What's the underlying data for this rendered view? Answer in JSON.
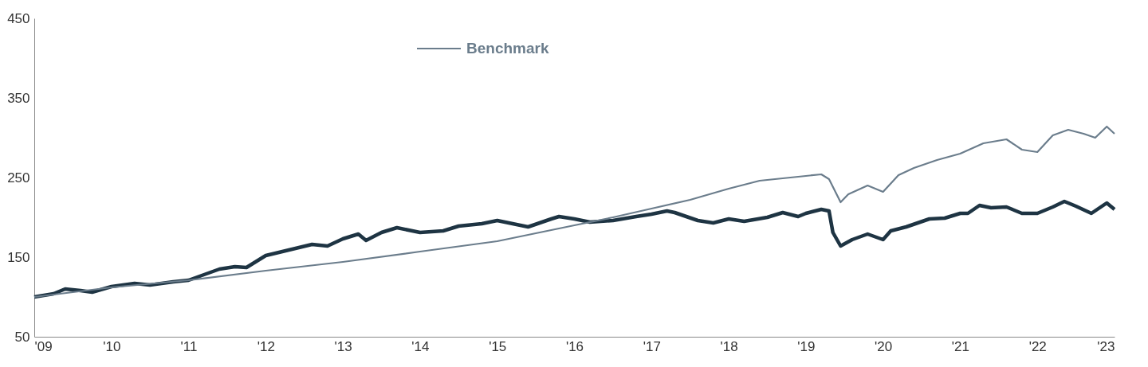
{
  "chart_data": {
    "type": "line",
    "xlim": [
      2009,
      2023
    ],
    "xticks": [
      {
        "value": 2009,
        "label": "'09"
      },
      {
        "value": 2010,
        "label": "'10"
      },
      {
        "value": 2011,
        "label": "'11"
      },
      {
        "value": 2012,
        "label": "'12"
      },
      {
        "value": 2013,
        "label": "'13"
      },
      {
        "value": 2014,
        "label": "'14"
      },
      {
        "value": 2015,
        "label": "'15"
      },
      {
        "value": 2016,
        "label": "'16"
      },
      {
        "value": 2017,
        "label": "'17"
      },
      {
        "value": 2018,
        "label": "'18"
      },
      {
        "value": 2019,
        "label": "'19"
      },
      {
        "value": 2020,
        "label": "'20"
      },
      {
        "value": 2021,
        "label": "'21"
      },
      {
        "value": 2022,
        "label": "'22"
      },
      {
        "value": 2023,
        "label": "'23"
      }
    ],
    "ylim": [
      50,
      450
    ],
    "yticks": [
      50,
      150,
      250,
      350,
      450
    ],
    "grid": false,
    "legend": "top left",
    "series": [
      {
        "color": "#1e3443",
        "x": [
          2009.0,
          2009.25,
          2009.4,
          2009.6,
          2009.75,
          2010.0,
          2010.3,
          2010.5,
          2010.8,
          2011.0,
          2011.2,
          2011.4,
          2011.6,
          2011.75,
          2012.0,
          2012.3,
          2012.6,
          2012.8,
          2013.0,
          2013.2,
          2013.3,
          2013.5,
          2013.7,
          2014.0,
          2014.3,
          2014.5,
          2014.8,
          2015.0,
          2015.4,
          2015.7,
          2015.8,
          2016.0,
          2016.2,
          2016.5,
          2016.8,
          2017.0,
          2017.2,
          2017.3,
          2017.6,
          2017.8,
          2018.0,
          2018.2,
          2018.5,
          2018.7,
          2018.9,
          2019.0,
          2019.2,
          2019.3,
          2019.35,
          2019.45,
          2019.6,
          2019.8,
          2020.0,
          2020.1,
          2020.3,
          2020.6,
          2020.8,
          2021.0,
          2021.1,
          2021.25,
          2021.4,
          2021.6,
          2021.8,
          2022.0,
          2022.2,
          2022.35,
          2022.5,
          2022.7,
          2022.9,
          2023.0
        ],
        "values": [
          100,
          104,
          110,
          108,
          106,
          113,
          117,
          115,
          119,
          121,
          128,
          135,
          138,
          137,
          152,
          159,
          166,
          164,
          173,
          179,
          171,
          181,
          187,
          181,
          183,
          189,
          192,
          196,
          188,
          198,
          201,
          198,
          194,
          196,
          201,
          204,
          208,
          206,
          196,
          193,
          198,
          195,
          200,
          206,
          201,
          205,
          210,
          208,
          181,
          164,
          172,
          179,
          172,
          183,
          188,
          198,
          199,
          205,
          205,
          215,
          212,
          213,
          205,
          205,
          213,
          220,
          214,
          205,
          218,
          210
        ]
      },
      {
        "name": "Benchmark",
        "color": "#6b7d8c",
        "x": [
          2009.0,
          2010.0,
          2011.0,
          2012.0,
          2013.0,
          2014.0,
          2015.0,
          2016.0,
          2016.5,
          2017.0,
          2017.5,
          2018.0,
          2018.4,
          2018.8,
          2019.0,
          2019.2,
          2019.3,
          2019.45,
          2019.55,
          2019.8,
          2020.0,
          2020.2,
          2020.4,
          2020.7,
          2021.0,
          2021.3,
          2021.6,
          2021.8,
          2022.0,
          2022.2,
          2022.4,
          2022.6,
          2022.75,
          2022.9,
          2023.0
        ],
        "values": [
          100,
          112,
          121,
          133,
          144,
          157,
          170,
          190,
          200,
          211,
          222,
          236,
          246,
          250,
          252,
          254,
          248,
          219,
          229,
          240,
          232,
          253,
          262,
          272,
          280,
          293,
          298,
          285,
          282,
          303,
          310,
          305,
          300,
          314,
          305
        ]
      }
    ]
  }
}
